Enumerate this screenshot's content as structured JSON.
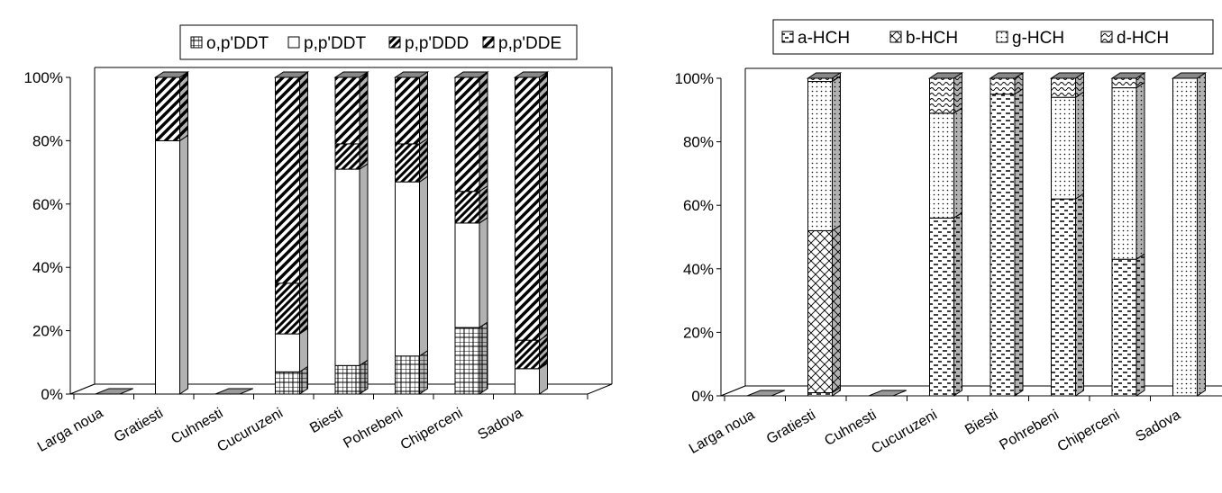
{
  "chart_data": [
    {
      "type": "bar",
      "stacked": true,
      "percent": true,
      "three_d": true,
      "categories": [
        "Larga noua",
        "Gratiesti",
        "Cuhnesti",
        "Cucuruzeni",
        "Biesti",
        "Pohrebeni",
        "Chiperceni",
        "Sadova"
      ],
      "yticks": [
        "0%",
        "20%",
        "40%",
        "60%",
        "80%",
        "100%"
      ],
      "ylim": [
        0,
        100
      ],
      "legend_position": "top",
      "series": [
        {
          "name": "o,p'DDT",
          "pattern": "grid",
          "values": [
            0,
            0,
            0,
            7,
            9,
            12,
            21,
            0
          ]
        },
        {
          "name": "p,p'DDT",
          "pattern": "plain",
          "values": [
            0,
            80,
            0,
            12,
            62,
            55,
            33,
            8
          ]
        },
        {
          "name": "p,p'DDD",
          "pattern": "diag-dense",
          "values": [
            0,
            0,
            0,
            16,
            8,
            12,
            10,
            9
          ]
        },
        {
          "name": "p,p'DDE",
          "pattern": "diag-wide",
          "values": [
            0,
            20,
            0,
            65,
            21,
            21,
            36,
            83
          ]
        }
      ]
    },
    {
      "type": "bar",
      "stacked": true,
      "percent": true,
      "three_d": true,
      "categories": [
        "Larga noua",
        "Gratiesti",
        "Cuhnesti",
        "Cucuruzeni",
        "Biesti",
        "Pohrebeni",
        "Chiperceni",
        "Sadova"
      ],
      "yticks": [
        "0%",
        "20%",
        "40%",
        "60%",
        "80%",
        "100%"
      ],
      "ylim": [
        0,
        100
      ],
      "legend_position": "top",
      "series": [
        {
          "name": "a-HCH",
          "pattern": "dash",
          "values": [
            0,
            1,
            0,
            56,
            95,
            62,
            43,
            0
          ]
        },
        {
          "name": "b-HCH",
          "pattern": "crosshatch",
          "values": [
            0,
            51,
            0,
            0,
            0,
            0,
            0,
            0
          ]
        },
        {
          "name": "g-HCH",
          "pattern": "dots",
          "values": [
            0,
            47,
            0,
            33,
            0,
            32,
            54,
            100
          ]
        },
        {
          "name": "d-HCH",
          "pattern": "wave",
          "values": [
            0,
            1,
            0,
            11,
            5,
            6,
            3,
            0
          ]
        }
      ]
    }
  ]
}
